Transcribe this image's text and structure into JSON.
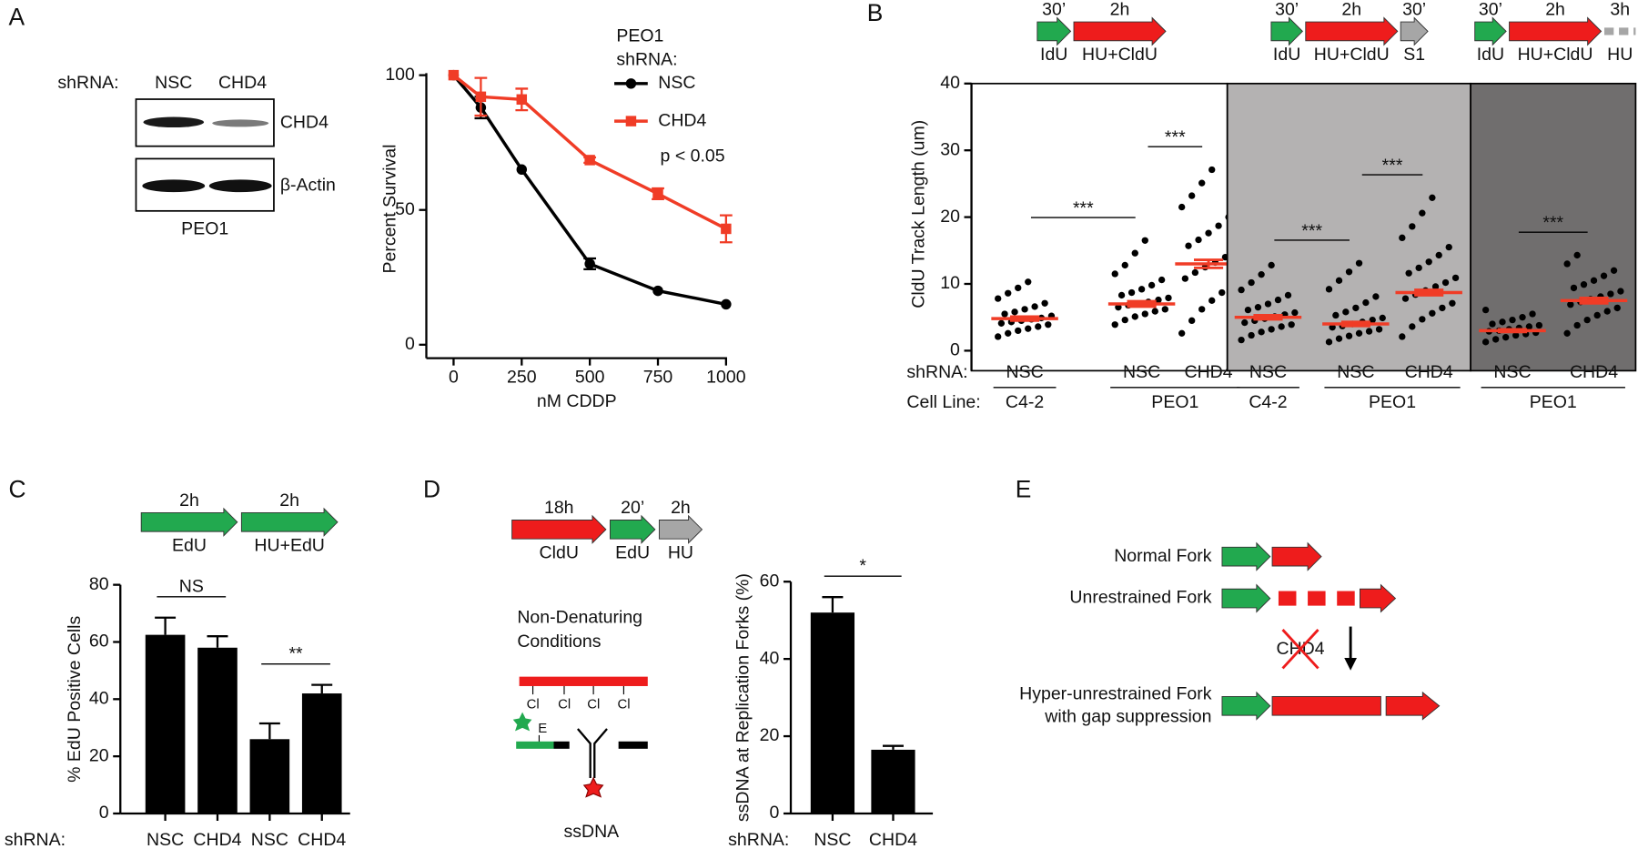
{
  "panel_labels": [
    "A",
    "B",
    "C",
    "D",
    "E"
  ],
  "blot": {
    "label": "shRNA:",
    "lanes": [
      "NSC",
      "CHD4"
    ],
    "bands": [
      "CHD4",
      "β-Actin"
    ],
    "cell_line": "PEO1"
  },
  "chart_data": [
    {
      "type": "line",
      "xlabel": "nM CDDP",
      "ylabel": "Percent Survival",
      "legend_title": [
        "PEO1",
        "shRNA:"
      ],
      "annotation": "p < 0.05",
      "x": [
        0,
        100,
        250,
        500,
        750,
        1000
      ],
      "series": [
        {
          "name": "NSC",
          "color": "#000000",
          "marker": "circle",
          "values": [
            100,
            88,
            65,
            30,
            20,
            15
          ],
          "errors": [
            0,
            4,
            0,
            2,
            0,
            0
          ]
        },
        {
          "name": "CHD4",
          "color": "#f03c26",
          "marker": "square",
          "values": [
            100,
            92,
            91,
            68.5,
            56,
            43
          ],
          "errors": [
            0,
            7,
            4,
            1,
            2,
            5
          ]
        }
      ],
      "xlim": [
        -100,
        1000
      ],
      "xticks": [
        0,
        250,
        500,
        750,
        1000
      ],
      "ylim": [
        -5,
        100
      ],
      "yticks": [
        0,
        50,
        100
      ]
    },
    {
      "type": "dot",
      "ylabel": "CldU Track Length (um)",
      "row_labels": [
        "shRNA:",
        "Cell Line:"
      ],
      "ylim": [
        -3,
        40
      ],
      "yticks": [
        0,
        10,
        20,
        30,
        40
      ],
      "point_color": "#000000",
      "mean_color": "#f03c26",
      "sections": [
        {
          "background": "#ffffff",
          "scheme": [
            {
              "top": "30’",
              "bottom": "IdU",
              "color": "#22a94f"
            },
            {
              "top": "2h",
              "bottom": "HU+CldU",
              "color": "#ee1c1c"
            }
          ],
          "comparisons": [
            "***",
            "***"
          ],
          "groups": [
            {
              "cell_line": "C4-2",
              "conditions": [
                {
                  "shRNA": "NSC",
                  "mean": 4.8,
                  "sem": 0.3,
                  "values": [
                    2.1,
                    2.6,
                    3.0,
                    3.3,
                    3.6,
                    3.9,
                    4.1,
                    4.3,
                    4.5,
                    4.7,
                    4.9,
                    5.2,
                    5.5,
                    5.8,
                    6.2,
                    6.6,
                    7.1,
                    7.8,
                    8.6,
                    9.4,
                    10.3
                  ]
                }
              ]
            },
            {
              "cell_line": "PEO1",
              "conditions": [
                {
                  "shRNA": "NSC",
                  "mean": 7,
                  "sem": 0.4,
                  "values": [
                    3.9,
                    4.6,
                    5.1,
                    5.5,
                    5.9,
                    6.2,
                    6.5,
                    6.8,
                    7.0,
                    7.3,
                    7.6,
                    7.9,
                    8.3,
                    8.7,
                    9.2,
                    9.8,
                    10.6,
                    11.5,
                    12.8,
                    14.6,
                    16.5
                  ]
                },
                {
                  "shRNA": "CHD4",
                  "mean": 13,
                  "sem": 0.6,
                  "values": [
                    2.6,
                    4.5,
                    6.2,
                    7.5,
                    8.7,
                    9.8,
                    10.8,
                    11.7,
                    12.5,
                    13.2,
                    14.0,
                    14.8,
                    15.7,
                    16.6,
                    17.6,
                    18.7,
                    20.0,
                    21.5,
                    23.2,
                    25.1,
                    27.1
                  ]
                }
              ]
            }
          ]
        },
        {
          "background": "#b4b2b2",
          "scheme": [
            {
              "top": "30’",
              "bottom": "IdU",
              "color": "#22a94f"
            },
            {
              "top": "2h",
              "bottom": "HU+CldU",
              "color": "#ee1c1c"
            },
            {
              "top": "30’",
              "bottom": "S1",
              "color": "#a6a6a6"
            }
          ],
          "comparisons": [
            "***",
            "***"
          ],
          "groups": [
            {
              "cell_line": "C4-2",
              "conditions": [
                {
                  "shRNA": "NSC",
                  "mean": 5,
                  "sem": 0.3,
                  "values": [
                    1.6,
                    2.3,
                    2.8,
                    3.2,
                    3.6,
                    3.9,
                    4.2,
                    4.5,
                    4.8,
                    5.1,
                    5.4,
                    5.7,
                    6.1,
                    6.5,
                    7.0,
                    7.6,
                    8.3,
                    9.1,
                    10.2,
                    11.4,
                    12.8
                  ]
                }
              ]
            },
            {
              "cell_line": "PEO1",
              "conditions": [
                {
                  "shRNA": "NSC",
                  "mean": 4,
                  "sem": 0.3,
                  "values": [
                    1.3,
                    1.8,
                    2.2,
                    2.6,
                    2.9,
                    3.2,
                    3.5,
                    3.7,
                    4.0,
                    4.3,
                    4.6,
                    4.9,
                    5.3,
                    5.8,
                    6.4,
                    7.2,
                    8.1,
                    9.2,
                    10.5,
                    11.8,
                    13.1
                  ]
                },
                {
                  "shRNA": "CHD4",
                  "mean": 8.7,
                  "sem": 0.4,
                  "values": [
                    2.1,
                    3.6,
                    4.7,
                    5.6,
                    6.4,
                    7.1,
                    7.8,
                    8.4,
                    9.0,
                    9.6,
                    10.2,
                    10.9,
                    11.6,
                    12.4,
                    13.3,
                    14.3,
                    15.5,
                    16.9,
                    18.6,
                    20.6,
                    22.9
                  ]
                }
              ]
            }
          ]
        },
        {
          "background": "#706e6e",
          "scheme": [
            {
              "top": "30’",
              "bottom": "IdU",
              "color": "#22a94f"
            },
            {
              "top": "2h",
              "bottom": "HU+CldU",
              "color": "#ee1c1c"
            },
            {
              "top": "3h",
              "bottom": "HU",
              "color": "#a6a6a6",
              "style": "dashed"
            }
          ],
          "comparisons": [
            "***"
          ],
          "groups": [
            {
              "cell_line": "PEO1",
              "conditions": [
                {
                  "shRNA": "NSC",
                  "mean": 3,
                  "sem": 0.2,
                  "values": [
                    1.3,
                    1.7,
                    2.0,
                    2.3,
                    2.5,
                    2.7,
                    2.9,
                    3.0,
                    3.2,
                    3.4,
                    3.6,
                    3.8,
                    4.0,
                    4.3,
                    4.6,
                    5.0,
                    5.5,
                    6.1
                  ]
                },
                {
                  "shRNA": "CHD4",
                  "mean": 7.5,
                  "sem": 0.4,
                  "values": [
                    2.6,
                    3.8,
                    4.6,
                    5.3,
                    5.9,
                    6.4,
                    6.9,
                    7.3,
                    7.7,
                    8.1,
                    8.5,
                    8.9,
                    9.4,
                    9.9,
                    10.5,
                    11.2,
                    12.0,
                    13.0,
                    14.3
                  ]
                }
              ]
            }
          ]
        }
      ]
    },
    {
      "type": "bar",
      "ylabel": "% EdU Positive Cells",
      "x_label": "shRNA:",
      "categories": [
        "NSC",
        "CHD4",
        "NSC",
        "CHD4"
      ],
      "values": [
        62.5,
        58,
        26,
        42
      ],
      "errors": [
        6,
        4,
        5.5,
        3
      ],
      "color": "#000000",
      "ylim": [
        0,
        80
      ],
      "yticks": [
        0,
        20,
        40,
        60,
        80
      ],
      "comparisons": [
        {
          "label": "NS",
          "between": [
            0,
            1
          ]
        },
        {
          "label": "**",
          "between": [
            2,
            3
          ]
        }
      ],
      "scheme": [
        {
          "top": "2h",
          "bottom": "EdU",
          "color": "#22a94f"
        },
        {
          "top": "2h",
          "bottom": "HU+EdU",
          "color": "#22a94f"
        }
      ]
    },
    {
      "type": "bar",
      "ylabel": "ssDNA at Replication Forks (%)",
      "x_label": "shRNA:",
      "categories": [
        "NSC",
        "CHD4"
      ],
      "values": [
        52,
        16.5
      ],
      "errors": [
        4,
        1
      ],
      "color": "#000000",
      "ylim": [
        0,
        60
      ],
      "yticks": [
        0,
        20,
        40,
        60
      ],
      "comparisons": [
        {
          "label": "*",
          "between": [
            0,
            1
          ]
        }
      ],
      "scheme": [
        {
          "top": "18h",
          "bottom": "CldU",
          "color": "#ee1c1c"
        },
        {
          "top": "20’",
          "bottom": "EdU",
          "color": "#22a94f"
        },
        {
          "top": "2h",
          "bottom": "HU",
          "color": "#a6a6a6"
        }
      ]
    }
  ],
  "diagram_D": {
    "condition": [
      "Non-Denaturing",
      "Conditions"
    ],
    "chlorine_labels": [
      "Cl",
      "Cl",
      "Cl",
      "Cl"
    ],
    "edu_label": "E",
    "ssdna_label": "ssDNA"
  },
  "model_E": {
    "normal": "Normal Fork",
    "unrestrained": "Unrestrained Fork",
    "knockdown": "CHD4",
    "hyper": [
      "Hyper-unrestrained Fork",
      "with gap suppression"
    ]
  }
}
